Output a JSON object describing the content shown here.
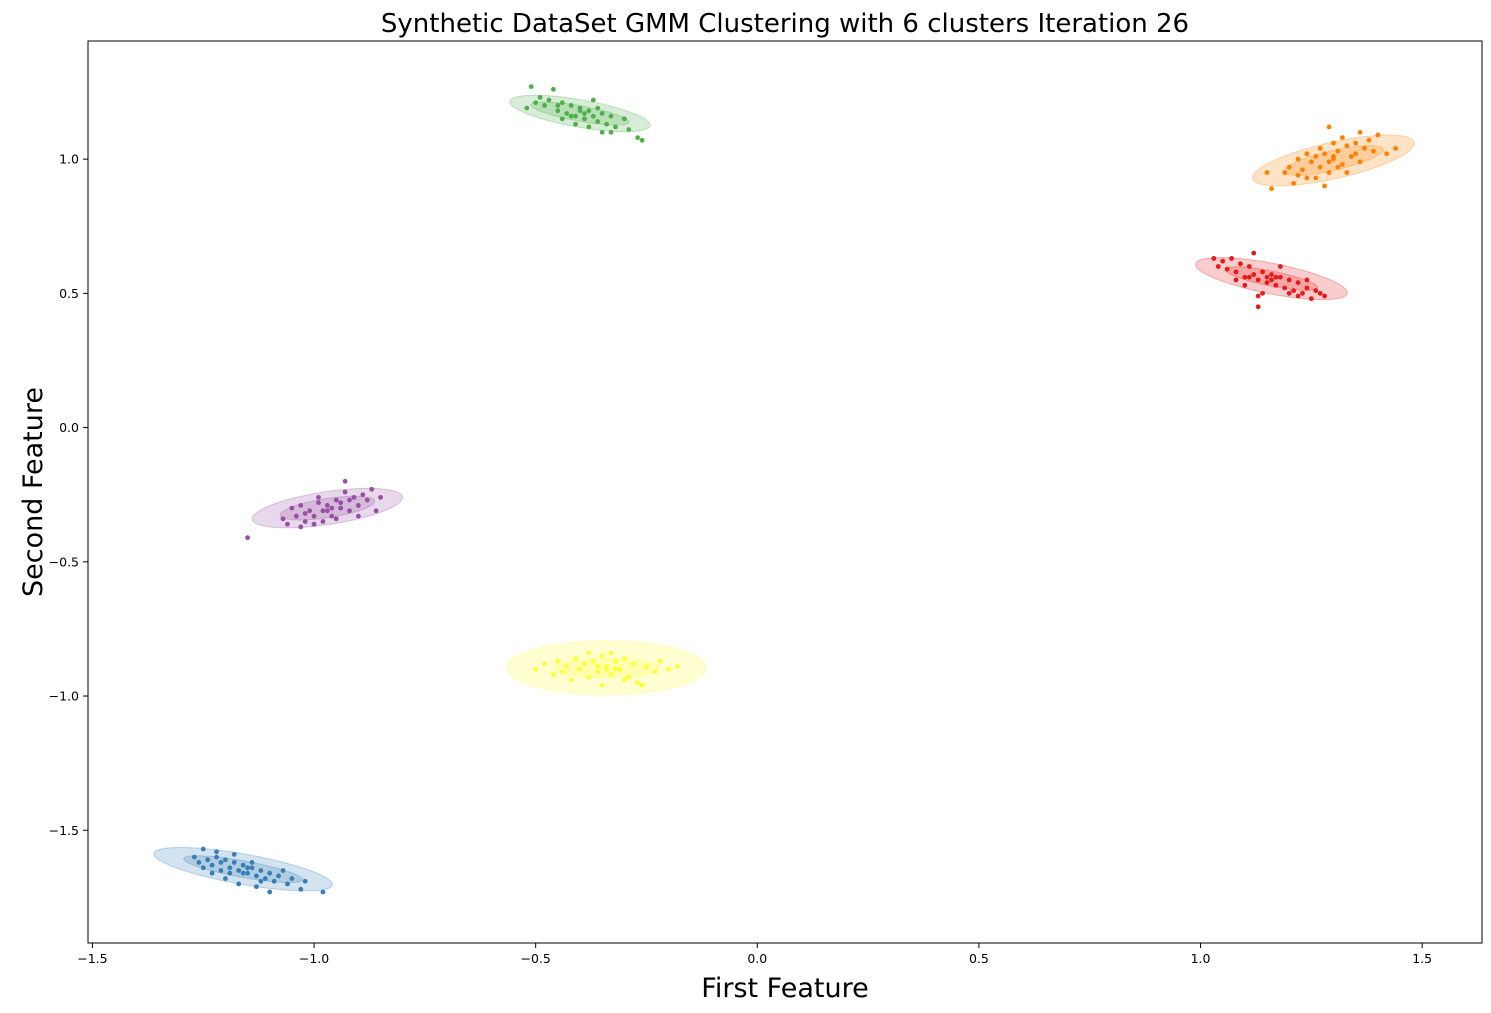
{
  "chart_data": {
    "type": "scatter",
    "title": "Synthetic DataSet GMM Clustering with 6 clusters Iteration 26",
    "xlabel": "First Feature",
    "ylabel": "Second Feature",
    "xlim": [
      -1.51,
      1.635
    ],
    "ylim": [
      -1.92,
      1.44
    ],
    "xticks": [
      {
        "value": -1.5,
        "label": "−1.5"
      },
      {
        "value": -1.0,
        "label": "−1.0"
      },
      {
        "value": -0.5,
        "label": "−0.5"
      },
      {
        "value": 0.0,
        "label": "0.0"
      },
      {
        "value": 0.5,
        "label": "0.5"
      },
      {
        "value": 1.0,
        "label": "1.0"
      },
      {
        "value": 1.5,
        "label": "1.5"
      }
    ],
    "yticks": [
      {
        "value": -1.5,
        "label": "−1.5"
      },
      {
        "value": -1.0,
        "label": "−1.0"
      },
      {
        "value": -0.5,
        "label": "−0.5"
      },
      {
        "value": 0.0,
        "label": "0.0"
      },
      {
        "value": 0.5,
        "label": "0.5"
      },
      {
        "value": 1.0,
        "label": "1.0"
      }
    ],
    "grid": false,
    "legend": "none",
    "clusters": [
      {
        "color": "#377eb8",
        "mean": [
          -1.16,
          -1.645
        ],
        "ellipse_inner": {
          "semi_major": 0.14,
          "semi_minor": 0.03,
          "angle_deg": -17
        },
        "ellipse_outer": {
          "semi_major": 0.21,
          "semi_minor": 0.055,
          "angle_deg": -17
        },
        "points": [
          [
            -1.27,
            -1.6
          ],
          [
            -1.26,
            -1.62
          ],
          [
            -1.25,
            -1.57
          ],
          [
            -1.24,
            -1.61
          ],
          [
            -1.23,
            -1.63
          ],
          [
            -1.22,
            -1.6
          ],
          [
            -1.21,
            -1.62
          ],
          [
            -1.2,
            -1.61
          ],
          [
            -1.19,
            -1.64
          ],
          [
            -1.18,
            -1.62
          ],
          [
            -1.17,
            -1.65
          ],
          [
            -1.16,
            -1.63
          ],
          [
            -1.15,
            -1.66
          ],
          [
            -1.14,
            -1.64
          ],
          [
            -1.13,
            -1.67
          ],
          [
            -1.12,
            -1.65
          ],
          [
            -1.11,
            -1.68
          ],
          [
            -1.1,
            -1.66
          ],
          [
            -1.09,
            -1.69
          ],
          [
            -1.08,
            -1.67
          ],
          [
            -1.06,
            -1.7
          ],
          [
            -1.05,
            -1.68
          ],
          [
            -1.03,
            -1.72
          ],
          [
            -1.02,
            -1.69
          ],
          [
            -0.98,
            -1.73
          ],
          [
            -1.23,
            -1.66
          ],
          [
            -1.2,
            -1.68
          ],
          [
            -1.17,
            -1.7
          ],
          [
            -1.13,
            -1.71
          ],
          [
            -1.1,
            -1.73
          ],
          [
            -1.22,
            -1.58
          ],
          [
            -1.18,
            -1.59
          ],
          [
            -1.14,
            -1.62
          ],
          [
            -1.16,
            -1.66
          ],
          [
            -1.15,
            -1.64
          ],
          [
            -1.12,
            -1.69
          ],
          [
            -1.21,
            -1.65
          ],
          [
            -1.07,
            -1.65
          ],
          [
            -1.25,
            -1.64
          ],
          [
            -1.19,
            -1.66
          ]
        ]
      },
      {
        "color": "#ff7f00",
        "mean": [
          1.3,
          0.995
        ],
        "ellipse_inner": {
          "semi_major": 0.12,
          "semi_minor": 0.035,
          "angle_deg": 22
        },
        "ellipse_outer": {
          "semi_major": 0.195,
          "semi_minor": 0.065,
          "angle_deg": 22
        },
        "points": [
          [
            1.15,
            0.95
          ],
          [
            1.16,
            0.89
          ],
          [
            1.19,
            0.95
          ],
          [
            1.2,
            0.97
          ],
          [
            1.21,
            0.91
          ],
          [
            1.22,
            1.0
          ],
          [
            1.23,
            0.96
          ],
          [
            1.24,
            0.93
          ],
          [
            1.25,
            0.99
          ],
          [
            1.26,
            1.01
          ],
          [
            1.27,
            0.97
          ],
          [
            1.28,
            1.02
          ],
          [
            1.29,
            0.95
          ],
          [
            1.29,
            1.12
          ],
          [
            1.3,
            1.0
          ],
          [
            1.31,
            1.03
          ],
          [
            1.32,
            0.98
          ],
          [
            1.33,
            1.05
          ],
          [
            1.34,
            1.01
          ],
          [
            1.35,
            1.06
          ],
          [
            1.36,
            0.99
          ],
          [
            1.37,
            1.04
          ],
          [
            1.38,
            1.07
          ],
          [
            1.39,
            1.03
          ],
          [
            1.4,
            1.09
          ],
          [
            1.42,
            1.02
          ],
          [
            1.44,
            1.04
          ],
          [
            1.26,
            0.93
          ],
          [
            1.28,
            0.9
          ],
          [
            1.31,
            0.97
          ],
          [
            1.33,
            0.95
          ],
          [
            1.3,
            1.06
          ],
          [
            1.27,
            1.04
          ],
          [
            1.24,
            1.02
          ],
          [
            1.35,
            1.02
          ],
          [
            1.32,
            1.08
          ],
          [
            1.22,
            0.94
          ],
          [
            1.36,
            1.1
          ],
          [
            1.29,
            0.99
          ],
          [
            1.3,
            1.01
          ]
        ]
      },
      {
        "color": "#4daf4a",
        "mean": [
          -0.4,
          1.17
        ],
        "ellipse_inner": {
          "semi_major": 0.115,
          "semi_minor": 0.028,
          "angle_deg": -17
        },
        "ellipse_outer": {
          "semi_major": 0.165,
          "semi_minor": 0.05,
          "angle_deg": -17
        },
        "points": [
          [
            -0.52,
            1.19
          ],
          [
            -0.51,
            1.27
          ],
          [
            -0.5,
            1.21
          ],
          [
            -0.49,
            1.23
          ],
          [
            -0.48,
            1.2
          ],
          [
            -0.47,
            1.22
          ],
          [
            -0.46,
            1.26
          ],
          [
            -0.45,
            1.18
          ],
          [
            -0.44,
            1.21
          ],
          [
            -0.43,
            1.17
          ],
          [
            -0.42,
            1.2
          ],
          [
            -0.41,
            1.16
          ],
          [
            -0.4,
            1.19
          ],
          [
            -0.39,
            1.15
          ],
          [
            -0.38,
            1.18
          ],
          [
            -0.37,
            1.22
          ],
          [
            -0.36,
            1.14
          ],
          [
            -0.35,
            1.17
          ],
          [
            -0.34,
            1.13
          ],
          [
            -0.33,
            1.16
          ],
          [
            -0.32,
            1.12
          ],
          [
            -0.3,
            1.15
          ],
          [
            -0.29,
            1.11
          ],
          [
            -0.27,
            1.08
          ],
          [
            -0.26,
            1.07
          ],
          [
            -0.44,
            1.15
          ],
          [
            -0.41,
            1.13
          ],
          [
            -0.38,
            1.12
          ],
          [
            -0.35,
            1.1
          ],
          [
            -0.4,
            1.18
          ],
          [
            -0.39,
            1.17
          ],
          [
            -0.42,
            1.16
          ],
          [
            -0.37,
            1.16
          ],
          [
            -0.45,
            1.2
          ],
          [
            -0.33,
            1.1
          ],
          [
            -0.36,
            1.19
          ]
        ]
      },
      {
        "color": "#e41a1c",
        "mean": [
          1.16,
          0.555
        ],
        "ellipse_inner": {
          "semi_major": 0.11,
          "semi_minor": 0.027,
          "angle_deg": -19
        },
        "ellipse_outer": {
          "semi_major": 0.18,
          "semi_minor": 0.055,
          "angle_deg": -19
        },
        "points": [
          [
            1.03,
            0.63
          ],
          [
            1.04,
            0.6
          ],
          [
            1.05,
            0.62
          ],
          [
            1.06,
            0.59
          ],
          [
            1.07,
            0.63
          ],
          [
            1.08,
            0.58
          ],
          [
            1.09,
            0.61
          ],
          [
            1.1,
            0.56
          ],
          [
            1.11,
            0.6
          ],
          [
            1.12,
            0.57
          ],
          [
            1.12,
            0.65
          ],
          [
            1.13,
            0.55
          ],
          [
            1.13,
            0.45
          ],
          [
            1.14,
            0.58
          ],
          [
            1.15,
            0.54
          ],
          [
            1.16,
            0.57
          ],
          [
            1.17,
            0.53
          ],
          [
            1.18,
            0.56
          ],
          [
            1.19,
            0.52
          ],
          [
            1.2,
            0.55
          ],
          [
            1.21,
            0.51
          ],
          [
            1.22,
            0.54
          ],
          [
            1.23,
            0.5
          ],
          [
            1.24,
            0.52
          ],
          [
            1.25,
            0.48
          ],
          [
            1.26,
            0.51
          ],
          [
            1.27,
            0.5
          ],
          [
            1.28,
            0.49
          ],
          [
            1.1,
            0.53
          ],
          [
            1.14,
            0.5
          ],
          [
            1.18,
            0.6
          ],
          [
            1.2,
            0.5
          ],
          [
            1.15,
            0.56
          ],
          [
            1.16,
            0.55
          ],
          [
            1.17,
            0.56
          ],
          [
            1.11,
            0.56
          ],
          [
            1.22,
            0.49
          ],
          [
            1.08,
            0.55
          ],
          [
            1.24,
            0.55
          ],
          [
            1.13,
            0.49
          ]
        ]
      },
      {
        "color": "#984ea3",
        "mean": [
          -0.97,
          -0.3
        ],
        "ellipse_inner": {
          "semi_major": 0.11,
          "semi_minor": 0.035,
          "angle_deg": 15
        },
        "ellipse_outer": {
          "semi_major": 0.175,
          "semi_minor": 0.06,
          "angle_deg": 15
        },
        "points": [
          [
            -1.15,
            -0.41
          ],
          [
            -1.07,
            -0.34
          ],
          [
            -1.06,
            -0.36
          ],
          [
            -1.04,
            -0.33
          ],
          [
            -1.03,
            -0.29
          ],
          [
            -1.02,
            -0.35
          ],
          [
            -1.01,
            -0.31
          ],
          [
            -1.0,
            -0.33
          ],
          [
            -0.99,
            -0.28
          ],
          [
            -0.98,
            -0.31
          ],
          [
            -0.97,
            -0.29
          ],
          [
            -0.96,
            -0.33
          ],
          [
            -0.95,
            -0.27
          ],
          [
            -0.94,
            -0.3
          ],
          [
            -0.93,
            -0.24
          ],
          [
            -0.92,
            -0.31
          ],
          [
            -0.91,
            -0.26
          ],
          [
            -0.9,
            -0.29
          ],
          [
            -0.89,
            -0.25
          ],
          [
            -0.88,
            -0.27
          ],
          [
            -0.87,
            -0.23
          ],
          [
            -0.86,
            -0.31
          ],
          [
            -0.85,
            -0.26
          ],
          [
            -0.93,
            -0.2
          ],
          [
            -1.0,
            -0.36
          ],
          [
            -0.98,
            -0.35
          ],
          [
            -0.95,
            -0.34
          ],
          [
            -1.05,
            -0.3
          ],
          [
            -0.96,
            -0.3
          ],
          [
            -0.97,
            -0.31
          ],
          [
            -0.94,
            -0.28
          ],
          [
            -1.02,
            -0.32
          ],
          [
            -0.9,
            -0.33
          ],
          [
            -0.99,
            -0.26
          ],
          [
            -1.03,
            -0.37
          ],
          [
            -0.92,
            -0.27
          ]
        ]
      },
      {
        "color": "#ffff33",
        "mean": [
          -0.34,
          -0.895
        ],
        "ellipse_inner": {
          "semi_major": 0.12,
          "semi_minor": 0.035,
          "angle_deg": 0
        },
        "ellipse_outer": {
          "semi_major": 0.225,
          "semi_minor": 0.1,
          "angle_deg": 0
        },
        "points": [
          [
            -0.5,
            -0.9
          ],
          [
            -0.48,
            -0.88
          ],
          [
            -0.46,
            -0.92
          ],
          [
            -0.45,
            -0.87
          ],
          [
            -0.44,
            -0.91
          ],
          [
            -0.43,
            -0.89
          ],
          [
            -0.42,
            -0.94
          ],
          [
            -0.41,
            -0.86
          ],
          [
            -0.4,
            -0.9
          ],
          [
            -0.39,
            -0.88
          ],
          [
            -0.38,
            -0.93
          ],
          [
            -0.37,
            -0.87
          ],
          [
            -0.36,
            -0.91
          ],
          [
            -0.35,
            -0.85
          ],
          [
            -0.34,
            -0.89
          ],
          [
            -0.33,
            -0.92
          ],
          [
            -0.32,
            -0.87
          ],
          [
            -0.31,
            -0.9
          ],
          [
            -0.3,
            -0.86
          ],
          [
            -0.29,
            -0.93
          ],
          [
            -0.28,
            -0.88
          ],
          [
            -0.27,
            -0.95
          ],
          [
            -0.26,
            -0.96
          ],
          [
            -0.25,
            -0.89
          ],
          [
            -0.23,
            -0.91
          ],
          [
            -0.22,
            -0.87
          ],
          [
            -0.2,
            -0.9
          ],
          [
            -0.18,
            -0.89
          ],
          [
            -0.35,
            -0.96
          ],
          [
            -0.33,
            -0.84
          ],
          [
            -0.38,
            -0.84
          ],
          [
            -0.3,
            -0.94
          ],
          [
            -0.34,
            -0.9
          ],
          [
            -0.36,
            -0.89
          ],
          [
            -0.32,
            -0.9
          ]
        ]
      }
    ]
  }
}
